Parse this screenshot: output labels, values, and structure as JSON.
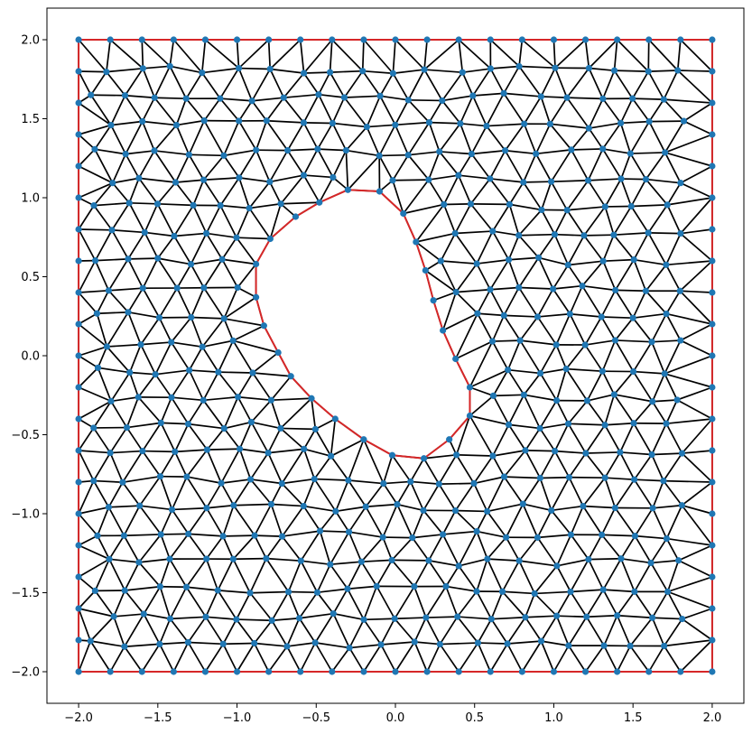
{
  "chart_data": {
    "type": "triangular mesh",
    "title": "",
    "xlabel": "",
    "ylabel": "",
    "xlim": [
      -2.2,
      2.2
    ],
    "ylim": [
      -2.2,
      2.2
    ],
    "x_ticks": [
      -2.0,
      -1.5,
      -1.0,
      -0.5,
      0.0,
      0.5,
      1.0,
      1.5,
      2.0
    ],
    "y_ticks": [
      -2.0,
      -1.5,
      -1.0,
      -0.5,
      0.0,
      0.5,
      1.0,
      1.5,
      2.0
    ],
    "x_tick_labels": [
      "−2.0",
      "−1.5",
      "−1.0",
      "−0.5",
      "0.0",
      "0.5",
      "1.0",
      "1.5",
      "2.0"
    ],
    "y_tick_labels": [
      "−2.0",
      "−1.5",
      "−1.0",
      "−0.5",
      "0.0",
      "0.5",
      "1.0",
      "1.5",
      "2.0"
    ],
    "grid": false,
    "legend": "none",
    "outer_boundary": [
      [
        -2,
        -2
      ],
      [
        2,
        -2
      ],
      [
        2,
        2
      ],
      [
        -2,
        2
      ]
    ],
    "hole_boundary": [
      [
        -0.3,
        1.05
      ],
      [
        -0.1,
        1.04
      ],
      [
        0.05,
        0.9
      ],
      [
        0.13,
        0.72
      ],
      [
        0.19,
        0.54
      ],
      [
        0.24,
        0.35
      ],
      [
        0.3,
        0.16
      ],
      [
        0.38,
        -0.02
      ],
      [
        0.47,
        -0.2
      ],
      [
        0.47,
        -0.38
      ],
      [
        0.34,
        -0.53
      ],
      [
        0.18,
        -0.65
      ],
      [
        -0.02,
        -0.63
      ],
      [
        -0.2,
        -0.53
      ],
      [
        -0.38,
        -0.4
      ],
      [
        -0.53,
        -0.27
      ],
      [
        -0.66,
        -0.13
      ],
      [
        -0.74,
        0.02
      ],
      [
        -0.83,
        0.19
      ],
      [
        -0.88,
        0.37
      ],
      [
        -0.88,
        0.58
      ],
      [
        -0.79,
        0.74
      ],
      [
        -0.63,
        0.88
      ],
      [
        -0.48,
        0.97
      ]
    ],
    "node_spacing": 0.2,
    "colors": {
      "mesh_edges": "#000000",
      "boundary": "#d62728",
      "nodes": "#1f77b4"
    }
  }
}
